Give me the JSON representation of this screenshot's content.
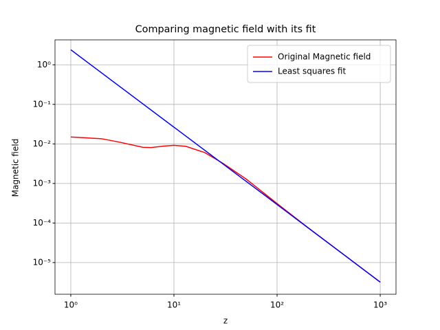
{
  "chart_data": {
    "type": "line",
    "title": "Comparing magnetic field with its fit",
    "x_label": "z",
    "y_label": "Magnetic field",
    "log_x": true,
    "log_y": true,
    "grid": true,
    "legend": "upper right",
    "xlim": [
      0.703,
      1422
    ],
    "ylim": [
      1.58e-06,
      4.27
    ],
    "xticks": [
      {
        "value": 1,
        "label": "10⁰"
      },
      {
        "value": 10,
        "label": "10¹"
      },
      {
        "value": 100,
        "label": "10²"
      },
      {
        "value": 1000,
        "label": "10³"
      }
    ],
    "yticks": [
      {
        "value": 1e-05,
        "label": "10⁻⁵"
      },
      {
        "value": 0.0001,
        "label": "10⁻⁴"
      },
      {
        "value": 0.001,
        "label": "10⁻³"
      },
      {
        "value": 0.01,
        "label": "10⁻²"
      },
      {
        "value": 0.1,
        "label": "10⁻¹"
      },
      {
        "value": 1,
        "label": "10⁰"
      }
    ],
    "series": [
      {
        "name": "Original Magnetic field",
        "color": "#ff0000",
        "x": [
          1,
          2,
          3,
          5,
          6,
          8,
          10,
          13,
          20,
          30,
          50,
          100,
          200,
          1000
        ],
        "values": [
          0.015,
          0.0135,
          0.011,
          0.0082,
          0.0081,
          0.0088,
          0.0092,
          0.0087,
          0.006,
          0.0032,
          0.0013,
          0.00031,
          7.6e-05,
          3.2e-06
        ]
      },
      {
        "name": "Least squares fit",
        "color": "#0000ff",
        "x": [
          1,
          10,
          100,
          1000
        ],
        "values": [
          2.4,
          0.0265,
          0.000293,
          3.2e-06
        ]
      }
    ]
  }
}
